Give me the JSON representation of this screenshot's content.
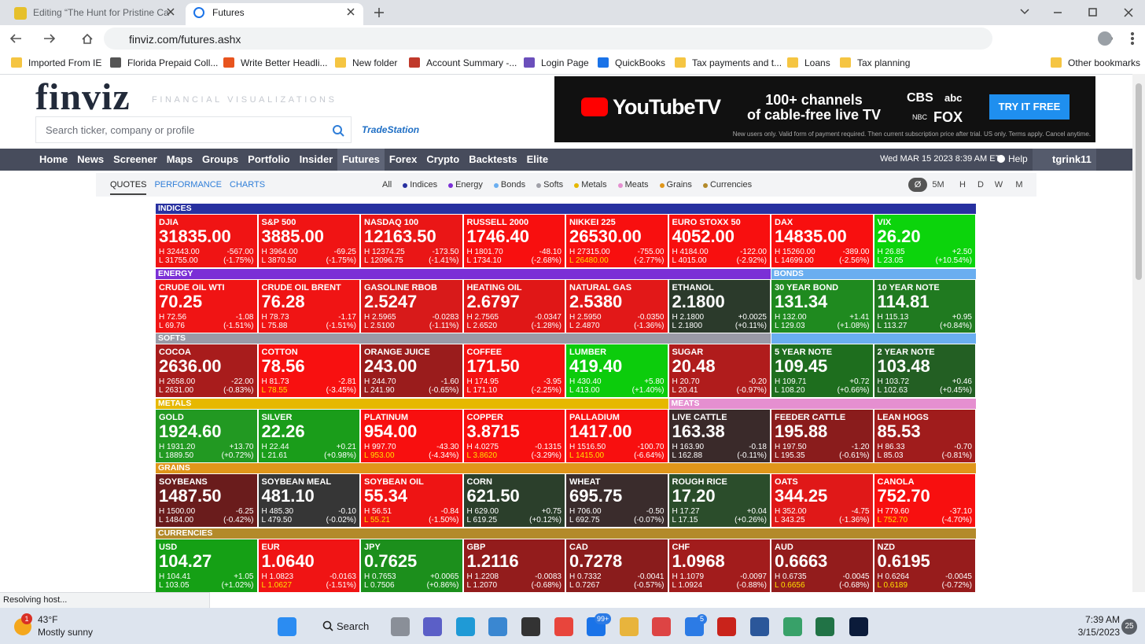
{
  "browser": {
    "tabs": [
      "Editing “The Hunt for Pristine Ca",
      "Futures"
    ],
    "url": "finviz.com/futures.ashx",
    "bookmarks": [
      "Imported From IE",
      "Florida Prepaid Coll...",
      "Write Better Headli...",
      "New folder",
      "Account Summary -...",
      "Login Page",
      "QuickBooks",
      "Tax payments and t...",
      "Loans",
      "Tax planning"
    ],
    "other_bookmarks": "Other bookmarks",
    "status": "Resolving host..."
  },
  "header": {
    "logo": "finviz",
    "tagline": "FINANCIAL VISUALIZATIONS",
    "search_placeholder": "Search ticker, company or profile",
    "sponsor": "TradeStation"
  },
  "ad": {
    "brand": "YouTubeTV",
    "headline": [
      "100+ channels",
      "of cable-free live TV"
    ],
    "networks": [
      "CBS",
      "abc",
      "NBC",
      "FOX"
    ],
    "cta": "TRY IT FREE",
    "disclaimer": "New users only. Valid form of payment required. Then current subscription price after trial. US only. Terms apply. Cancel anytime."
  },
  "nav": {
    "items": [
      {
        "label": "Home"
      },
      {
        "label": "News"
      },
      {
        "label": "Screener"
      },
      {
        "label": "Maps"
      },
      {
        "label": "Groups"
      },
      {
        "label": "Portfolio"
      },
      {
        "label": "Insider"
      },
      {
        "label": "Futures",
        "active": true
      },
      {
        "label": "Forex"
      },
      {
        "label": "Crypto"
      },
      {
        "label": "Backtests"
      },
      {
        "label": "Elite"
      }
    ],
    "datetime": "Wed MAR 15 2023 8:39 AM ET",
    "help": "Help",
    "user": "tgrink11"
  },
  "subnav": {
    "views": [
      {
        "label": "QUOTES",
        "active": true
      },
      {
        "label": "PERFORMANCE"
      },
      {
        "label": "CHARTS"
      }
    ],
    "filters": [
      {
        "label": "All"
      },
      {
        "label": "Indices",
        "color": "#2730a0"
      },
      {
        "label": "Energy",
        "color": "#7b2fd6"
      },
      {
        "label": "Bonds",
        "color": "#6aaef0"
      },
      {
        "label": "Softs",
        "color": "#a0a0a8"
      },
      {
        "label": "Metals",
        "color": "#e6b800"
      },
      {
        "label": "Meats",
        "color": "#e58fd0"
      },
      {
        "label": "Grains",
        "color": "#e0961a"
      },
      {
        "label": "Currencies",
        "color": "#b38a2a"
      }
    ],
    "timeframes": [
      {
        "label": "Ø",
        "active": true
      },
      {
        "label": "5M"
      },
      {
        "label": "H"
      },
      {
        "label": "D"
      },
      {
        "label": "W"
      },
      {
        "label": "M"
      }
    ]
  },
  "futures": {
    "rows": [
      {
        "groups": [
          {
            "label": "INDICES",
            "color": "#2730a0",
            "tiles": [
              {
                "name": "DJIA",
                "price": "31835.00",
                "high": "H 32443.00",
                "low": "L 31755.00",
                "change": "-567.00",
                "pct": "(-1.75%)",
                "color": "#f01414"
              },
              {
                "name": "S&P 500",
                "price": "3885.00",
                "high": "H 3964.00",
                "low": "L 3870.50",
                "change": "-69.25",
                "pct": "(-1.75%)",
                "color": "#f01414"
              },
              {
                "name": "NASDAQ 100",
                "price": "12163.50",
                "high": "H 12374.25",
                "low": "L 12096.75",
                "change": "-173.50",
                "pct": "(-1.41%)",
                "color": "#ea1616"
              },
              {
                "name": "RUSSELL 2000",
                "price": "1746.40",
                "high": "H 1801.70",
                "low": "L 1734.10",
                "change": "-48.10",
                "pct": "(-2.68%)",
                "color": "#f80f0f"
              },
              {
                "name": "NIKKEI 225",
                "price": "26530.00",
                "high": "H 27315.00",
                "low": "L 26480.00",
                "change": "-755.00",
                "pct": "(-2.77%)",
                "color": "#f80f0f",
                "low_color": "#ffe000"
              },
              {
                "name": "EURO STOXX 50",
                "price": "4052.00",
                "high": "H 4184.00",
                "low": "L 4015.00",
                "change": "-122.00",
                "pct": "(-2.92%)",
                "color": "#f80f0f"
              },
              {
                "name": "DAX",
                "price": "14835.00",
                "high": "H 15260.00",
                "low": "L 14699.00",
                "change": "-389.00",
                "pct": "(-2.56%)",
                "color": "#f80f0f"
              },
              {
                "name": "VIX",
                "price": "26.20",
                "high": "H 26.85",
                "low": "L 23.05",
                "change": "+2.50",
                "pct": "(+10.54%)",
                "color": "#0cd40c"
              }
            ]
          }
        ]
      },
      {
        "groups": [
          {
            "label": "ENERGY",
            "color": "#7b2fd6",
            "tiles": [
              {
                "name": "CRUDE OIL WTI",
                "price": "70.25",
                "high": "H 72.56",
                "low": "L 69.76",
                "change": "-1.08",
                "pct": "(-1.51%)",
                "color": "#f01414"
              },
              {
                "name": "CRUDE OIL BRENT",
                "price": "76.28",
                "high": "H 78.73",
                "low": "L 75.88",
                "change": "-1.17",
                "pct": "(-1.51%)",
                "color": "#f01414"
              },
              {
                "name": "GASOLINE RBOB",
                "price": "2.5247",
                "high": "H 2.5965",
                "low": "L 2.5100",
                "change": "-0.0283",
                "pct": "(-1.11%)",
                "color": "#d81a1a"
              },
              {
                "name": "HEATING OIL",
                "price": "2.6797",
                "high": "H 2.7565",
                "low": "L 2.6520",
                "change": "-0.0347",
                "pct": "(-1.28%)",
                "color": "#e01717"
              },
              {
                "name": "NATURAL GAS",
                "price": "2.5380",
                "high": "H 2.5950",
                "low": "L 2.4870",
                "change": "-0.0350",
                "pct": "(-1.36%)",
                "color": "#e21818"
              },
              {
                "name": "ETHANOL",
                "price": "2.1800",
                "high": "H 2.1800",
                "low": "L 2.1800",
                "change": "+0.0025",
                "pct": "(+0.11%)",
                "color": "#2b3a2b"
              }
            ]
          },
          {
            "label": "BONDS",
            "color": "#6aaef0",
            "tiles": [
              {
                "name": "30 YEAR BOND",
                "price": "131.34",
                "high": "H 132.00",
                "low": "L 129.03",
                "change": "+1.41",
                "pct": "(+1.08%)",
                "color": "#1f8a1f"
              },
              {
                "name": "10 YEAR NOTE",
                "price": "114.81",
                "high": "H 115.13",
                "low": "L 113.27",
                "change": "+0.95",
                "pct": "(+0.84%)",
                "color": "#207a20"
              }
            ]
          }
        ]
      },
      {
        "groups": [
          {
            "label": "SOFTS",
            "color": "#9a9aa6",
            "tiles": [
              {
                "name": "COCOA",
                "price": "2636.00",
                "high": "H 2658.00",
                "low": "L 2631.00",
                "change": "-22.00",
                "pct": "(-0.83%)",
                "color": "#a81c1c"
              },
              {
                "name": "COTTON",
                "price": "78.56",
                "high": "H 81.73",
                "low": "L 78.55",
                "change": "-2.81",
                "pct": "(-3.45%)",
                "color": "#f81010",
                "low_color": "#ffe000"
              },
              {
                "name": "ORANGE JUICE",
                "price": "243.00",
                "high": "H 244.70",
                "low": "L 241.90",
                "change": "-1.60",
                "pct": "(-0.65%)",
                "color": "#9a1c1c"
              },
              {
                "name": "COFFEE",
                "price": "171.50",
                "high": "H 174.95",
                "low": "L 171.10",
                "change": "-3.95",
                "pct": "(-2.25%)",
                "color": "#f41212"
              },
              {
                "name": "LUMBER",
                "price": "419.40",
                "high": "H 430.40",
                "low": "L 413.00",
                "change": "+5.80",
                "pct": "(+1.40%)",
                "color": "#0ccc0c"
              },
              {
                "name": "SUGAR",
                "price": "20.48",
                "high": "H 20.70",
                "low": "L 20.41",
                "change": "-0.20",
                "pct": "(-0.97%)",
                "color": "#b01c1c"
              }
            ]
          },
          {
            "color": "#6aaef0",
            "tiles": [
              {
                "name": "5 YEAR NOTE",
                "price": "109.45",
                "high": "H 109.71",
                "low": "L 108.20",
                "change": "+0.72",
                "pct": "(+0.66%)",
                "color": "#1e6e1e"
              },
              {
                "name": "2 YEAR NOTE",
                "price": "103.48",
                "high": "H 103.72",
                "low": "L 102.63",
                "change": "+0.46",
                "pct": "(+0.45%)",
                "color": "#235f23"
              }
            ]
          }
        ]
      },
      {
        "groups": [
          {
            "label": "METALS",
            "color": "#e6b800",
            "tiles": [
              {
                "name": "GOLD",
                "price": "1924.60",
                "high": "H 1931.20",
                "low": "L 1889.50",
                "change": "+13.70",
                "pct": "(+0.72%)",
                "color": "#229922"
              },
              {
                "name": "SILVER",
                "price": "22.26",
                "high": "H 22.44",
                "low": "L 21.61",
                "change": "+0.21",
                "pct": "(+0.98%)",
                "color": "#1a9d1a"
              },
              {
                "name": "PLATINUM",
                "price": "954.00",
                "high": "H 997.70",
                "low": "L 953.00",
                "change": "-43.30",
                "pct": "(-4.34%)",
                "color": "#f80f0f",
                "low_color": "#ffe000"
              },
              {
                "name": "COPPER",
                "price": "3.8715",
                "high": "H 4.0275",
                "low": "L 3.8620",
                "change": "-0.1315",
                "pct": "(-3.29%)",
                "color": "#f80f0f",
                "low_color": "#ffe000"
              },
              {
                "name": "PALLADIUM",
                "price": "1417.00",
                "high": "H 1516.50",
                "low": "L 1415.00",
                "change": "-100.70",
                "pct": "(-6.64%)",
                "color": "#f80f0f",
                "low_color": "#ffe000"
              }
            ]
          },
          {
            "label": "MEATS",
            "color": "#e58fd0",
            "tiles": [
              {
                "name": "LIVE CATTLE",
                "price": "163.38",
                "high": "H 163.90",
                "low": "L 162.88",
                "change": "-0.18",
                "pct": "(-0.11%)",
                "color": "#3a2a2a"
              },
              {
                "name": "FEEDER CATTLE",
                "price": "195.88",
                "high": "H 197.50",
                "low": "L 195.35",
                "change": "-1.20",
                "pct": "(-0.61%)",
                "color": "#8a1c1c"
              },
              {
                "name": "LEAN HOGS",
                "price": "85.53",
                "high": "H 86.33",
                "low": "L 85.03",
                "change": "-0.70",
                "pct": "(-0.81%)",
                "color": "#a01c1c"
              }
            ]
          }
        ]
      },
      {
        "groups": [
          {
            "label": "GRAINS",
            "color": "#e0961a",
            "tiles": [
              {
                "name": "SOYBEANS",
                "price": "1487.50",
                "high": "H 1500.00",
                "low": "L 1484.00",
                "change": "-6.25",
                "pct": "(-0.42%)",
                "color": "#6a1c1c"
              },
              {
                "name": "SOYBEAN MEAL",
                "price": "481.10",
                "high": "H 485.30",
                "low": "L 479.50",
                "change": "-0.10",
                "pct": "(-0.02%)",
                "color": "#363636"
              },
              {
                "name": "SOYBEAN OIL",
                "price": "55.34",
                "high": "H 56.51",
                "low": "L 55.21",
                "change": "-0.84",
                "pct": "(-1.50%)",
                "color": "#ee1414",
                "low_color": "#ffe000"
              },
              {
                "name": "CORN",
                "price": "621.50",
                "high": "H 629.00",
                "low": "L 619.25",
                "change": "+0.75",
                "pct": "(+0.12%)",
                "color": "#2b3f2b"
              },
              {
                "name": "WHEAT",
                "price": "695.75",
                "high": "H 706.00",
                "low": "L 692.75",
                "change": "-0.50",
                "pct": "(-0.07%)",
                "color": "#3a2c2c"
              },
              {
                "name": "ROUGH RICE",
                "price": "17.20",
                "high": "H 17.27",
                "low": "L 17.15",
                "change": "+0.04",
                "pct": "(+0.26%)",
                "color": "#2b4d2b"
              },
              {
                "name": "OATS",
                "price": "344.25",
                "high": "H 352.00",
                "low": "L 343.25",
                "change": "-4.75",
                "pct": "(-1.36%)",
                "color": "#e01818"
              },
              {
                "name": "CANOLA",
                "price": "752.70",
                "high": "H 779.60",
                "low": "L 752.70",
                "change": "-37.10",
                "pct": "(-4.70%)",
                "color": "#f80f0f",
                "low_color": "#ffe000"
              }
            ]
          }
        ]
      },
      {
        "groups": [
          {
            "label": "CURRENCIES",
            "color": "#b38a2a",
            "tiles": [
              {
                "name": "USD",
                "price": "104.27",
                "high": "H 104.41",
                "low": "L 103.05",
                "change": "+1.05",
                "pct": "(+1.02%)",
                "color": "#15a015"
              },
              {
                "name": "EUR",
                "price": "1.0640",
                "high": "H 1.0823",
                "low": "L 1.0627",
                "change": "-0.0163",
                "pct": "(-1.51%)",
                "color": "#f01414",
                "low_color": "#ffe000"
              },
              {
                "name": "JPY",
                "price": "0.7625",
                "high": "H 0.7653",
                "low": "L 0.7506",
                "change": "+0.0065",
                "pct": "(+0.86%)",
                "color": "#1c8f1c"
              },
              {
                "name": "GBP",
                "price": "1.2116",
                "high": "H 1.2208",
                "low": "L 1.2070",
                "change": "-0.0083",
                "pct": "(-0.68%)",
                "color": "#931c1c"
              },
              {
                "name": "CAD",
                "price": "0.7278",
                "high": "H 0.7332",
                "low": "L 0.7267",
                "change": "-0.0041",
                "pct": "(-0.57%)",
                "color": "#8a1c1c"
              },
              {
                "name": "CHF",
                "price": "1.0968",
                "high": "H 1.1079",
                "low": "L 1.0924",
                "change": "-0.0097",
                "pct": "(-0.88%)",
                "color": "#a21c1c"
              },
              {
                "name": "AUD",
                "price": "0.6663",
                "high": "H 0.6735",
                "low": "L 0.6656",
                "change": "-0.0045",
                "pct": "(-0.68%)",
                "color": "#931c1c",
                "low_color": "#ffe000"
              },
              {
                "name": "NZD",
                "price": "0.6195",
                "high": "H 0.6264",
                "low": "L 0.6189",
                "change": "-0.0045",
                "pct": "(-0.72%)",
                "color": "#971c1c",
                "low_color": "#ffe000"
              }
            ]
          }
        ]
      }
    ]
  },
  "taskbar": {
    "weather_badge": "1",
    "temperature": "43°F",
    "condition": "Mostly sunny",
    "search": "Search",
    "mail_badge": "99+",
    "todo_badge": "5",
    "time": "7:39 AM",
    "date": "3/15/2023",
    "notifications": "25"
  }
}
